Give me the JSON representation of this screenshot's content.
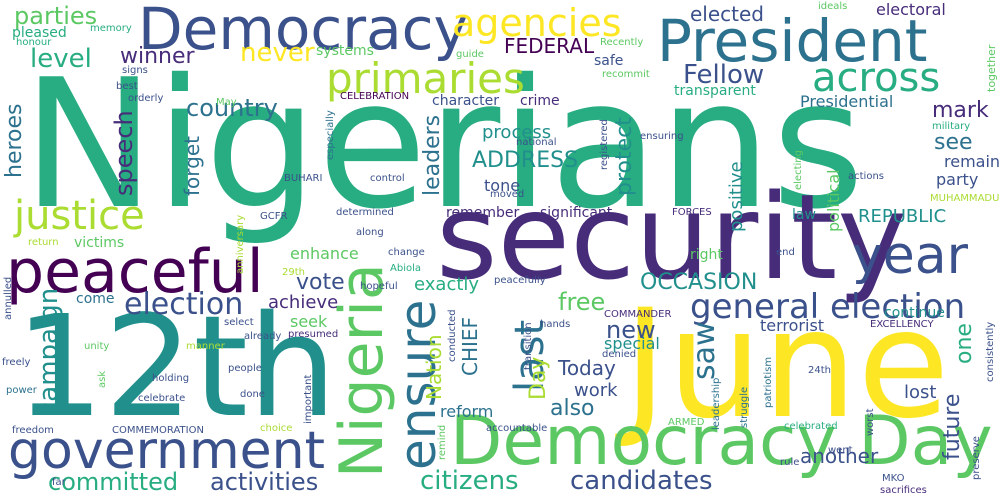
{
  "word_cloud": {
    "background": "#ffffff",
    "palette": [
      "#440154",
      "#472c7a",
      "#3b518b",
      "#2c718e",
      "#21908d",
      "#27ad81",
      "#5cc863",
      "#aadc32",
      "#fde725"
    ],
    "words": [
      "Nigerians",
      "security",
      "12th",
      "June",
      "Democracy Day",
      "Democracy",
      "President",
      "peaceful",
      "government",
      "Nigeria",
      "ensure",
      "year",
      "primaries",
      "agencies",
      "justice",
      "across",
      "general election",
      "last",
      "campaign",
      "election",
      "citizens",
      "candidates",
      "committed",
      "activities",
      "Fellow",
      "country",
      "never",
      "level",
      "winner",
      "parties",
      "elected",
      "electoral",
      "FEDERAL",
      "ADDRESS",
      "process",
      "protect",
      "leaders",
      "speech",
      "forget",
      "heroes",
      "mark",
      "see",
      "saw",
      "also",
      "new",
      "free",
      "vote",
      "Today",
      "Day",
      "OCCASION",
      "REPUBLIC",
      "CHIEF",
      "Nation",
      "exactly",
      "achieve",
      "enhance",
      "seek",
      "come",
      "victims",
      "remember",
      "reform",
      "work",
      "special",
      "another",
      "future",
      "one",
      "lost",
      "terrorist",
      "continue",
      "party",
      "remain",
      "law",
      "right",
      "tone",
      "significant",
      "positive",
      "political",
      "Presidential",
      "transparent",
      "character",
      "crime",
      "safe",
      "recommit",
      "systems",
      "pleased",
      "honour",
      "memory",
      "ideals",
      "together",
      "guide",
      "Recently",
      "signs",
      "best",
      "orderly",
      "far",
      "May",
      "CELEBRATION",
      "especially",
      "national",
      "registered",
      "ensuring",
      "military",
      "electing",
      "actions",
      "control",
      "BUHARI",
      "GCFR",
      "moved",
      "determined",
      "along",
      "change",
      "Abiola",
      "29th",
      "hopeful",
      "peacefully",
      "COMMANDER",
      "hands",
      "denied",
      "transition",
      "conducted",
      "presumed",
      "already",
      "select",
      "manner",
      "unity",
      "freely",
      "ask",
      "annulled",
      "power",
      "holding",
      "celebrate",
      "people",
      "done",
      "important",
      "choice",
      "COMMEMORATION",
      "freedom",
      "remind",
      "accountable",
      "leadership",
      "struggle",
      "patriotism",
      "celebrated",
      "went",
      "rule",
      "24th",
      "worst",
      "ARMED",
      "FORCES",
      "EXCELLENCY",
      "consistently",
      "preserve",
      "sacrifices",
      "MKO",
      "MUHAMMADU",
      "return",
      "anniversary",
      "end"
    ]
  }
}
